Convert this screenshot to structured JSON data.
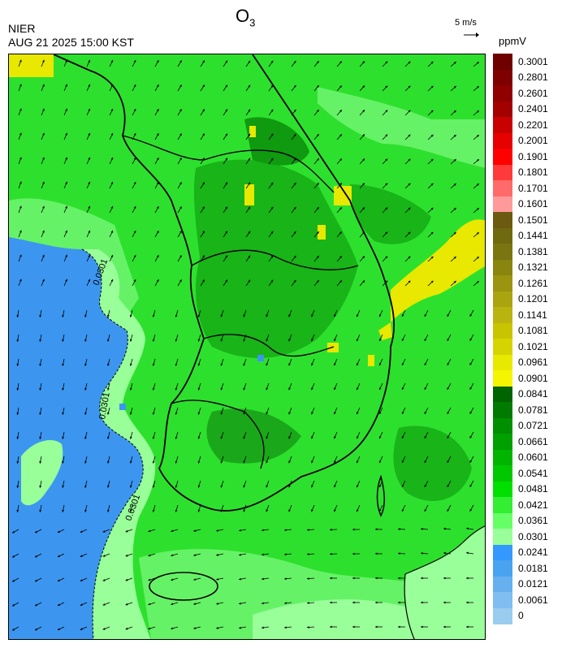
{
  "header": {
    "agency": "NIER",
    "timestamp": "AUG 21 2025 15:00 KST",
    "species_main": "O",
    "species_sub": "3",
    "units": "ppmV",
    "ref_vector_label": "5 m/s"
  },
  "map": {
    "contour_labels": [
      "0.0301",
      "0.0301",
      "0.0301"
    ],
    "wind_pattern": "northerly-northeasterly flow over land, easterly near southeast coast",
    "regions": [
      "yellow-sea-low-ozone",
      "korean-peninsula",
      "east-sea-high-ozone",
      "jeju-island",
      "tsushima-island"
    ]
  },
  "colorbar": {
    "labels": [
      "0.3001",
      "0.2801",
      "0.2601",
      "0.2401",
      "0.2201",
      "0.2001",
      "0.1901",
      "0.1801",
      "0.1701",
      "0.1601",
      "0.1501",
      "0.1441",
      "0.1381",
      "0.1321",
      "0.1261",
      "0.1201",
      "0.1141",
      "0.1081",
      "0.1021",
      "0.0961",
      "0.0901",
      "0.0841",
      "0.0781",
      "0.0721",
      "0.0661",
      "0.0601",
      "0.0541",
      "0.0481",
      "0.0421",
      "0.0361",
      "0.0301",
      "0.0241",
      "0.0181",
      "0.0121",
      "0.0061",
      "0"
    ],
    "colors": [
      "#6e0000",
      "#7e0000",
      "#900000",
      "#a30000",
      "#c80000",
      "#e60000",
      "#ff0000",
      "#ff3a3a",
      "#ff6a6a",
      "#ff9a9a",
      "#6b5a10",
      "#6f6a10",
      "#7a7510",
      "#8a8410",
      "#9a9410",
      "#aaa410",
      "#bab410",
      "#c8c400",
      "#d6d400",
      "#e8e800",
      "#f5f500",
      "#006400",
      "#007a00",
      "#008f00",
      "#00a000",
      "#00b400",
      "#00c800",
      "#00e000",
      "#33ee33",
      "#66ff66",
      "#99ff99",
      "#3399ff",
      "#4aa3f0",
      "#66b0f0",
      "#80bdf0",
      "#99ccee"
    ]
  }
}
